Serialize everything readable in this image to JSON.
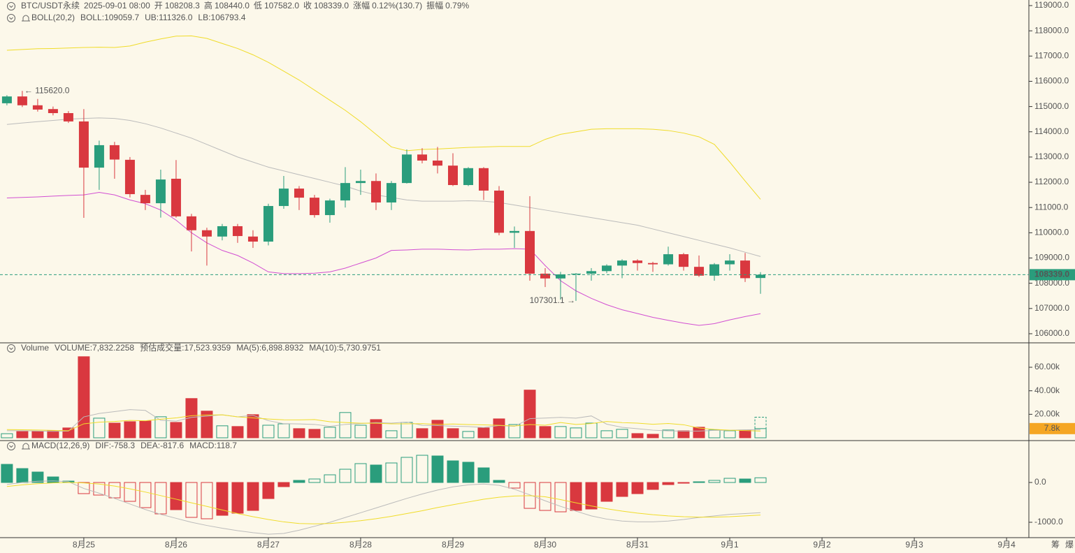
{
  "chart_data": [
    {
      "type": "candlestick",
      "header": {
        "symbol": "BTC/USDT永续",
        "time": "2025-09-01 08:00",
        "open_label": "开",
        "open": "108208.3",
        "high_label": "高",
        "high": "108440.0",
        "low_label": "低",
        "low": "107582.0",
        "close_label": "收",
        "close": "108339.0",
        "change_label": "涨幅",
        "change": "0.12%(130.7)",
        "amplitude_label": "振幅",
        "amplitude": "0.79%"
      },
      "indicator": "BOLL(20,2)",
      "up_color": "#2a9d7c",
      "down_color": "#d9383f",
      "open": [
        115130,
        115400,
        115050,
        114900,
        114740,
        114410,
        112580,
        113470,
        112890,
        111500,
        111170,
        112140,
        110650,
        110100,
        109850,
        110260,
        109850,
        109650,
        111060,
        111750,
        111390,
        110700,
        111280,
        111970,
        112050,
        111200,
        111970,
        113100,
        112860,
        112660,
        111890,
        112560,
        111670,
        110000,
        110070,
        108380,
        108190,
        108350,
        108380,
        108480,
        108700,
        108900,
        108800,
        108750,
        109150,
        108650,
        108300,
        108750,
        108900,
        108208.3
      ],
      "close": [
        115400,
        115050,
        114880,
        114740,
        114410,
        112580,
        113470,
        112900,
        111530,
        111170,
        112110,
        110650,
        110100,
        109850,
        110260,
        109870,
        109650,
        111060,
        111750,
        111390,
        110700,
        111280,
        111970,
        112050,
        111200,
        111970,
        113100,
        112860,
        112660,
        111890,
        112560,
        111670,
        110000,
        110070,
        108380,
        108190,
        108350,
        108380,
        108480,
        108700,
        108900,
        108800,
        108750,
        109150,
        108650,
        108300,
        108750,
        108900,
        108200,
        108339.0
      ],
      "high": [
        115450,
        115620,
        115300,
        115000,
        114820,
        114900,
        113650,
        113600,
        113000,
        111700,
        112500,
        112880,
        110750,
        110200,
        110350,
        110350,
        110100,
        111150,
        112250,
        111850,
        111500,
        111350,
        112600,
        112500,
        112350,
        112050,
        113300,
        113350,
        113400,
        113150,
        112600,
        112600,
        111850,
        110250,
        111450,
        108600,
        108450,
        108400,
        108600,
        108750,
        108950,
        108950,
        108850,
        109450,
        109200,
        109100,
        108800,
        109150,
        109200,
        108440
      ],
      "low": [
        115050,
        114980,
        114800,
        114650,
        114350,
        110591,
        111700,
        112140,
        111400,
        110900,
        110600,
        110600,
        109260,
        108700,
        109700,
        109600,
        109400,
        109500,
        110950,
        110900,
        110600,
        110400,
        111000,
        111500,
        110900,
        110900,
        111950,
        112750,
        112350,
        111850,
        111850,
        111300,
        109900,
        109400,
        108100,
        107850,
        107350,
        107301.1,
        108100,
        108400,
        108200,
        108500,
        108450,
        108700,
        108500,
        108250,
        108100,
        108500,
        108050,
        107582
      ],
      "series": [
        {
          "name": "BOLL:109059.7",
          "color": "#bbbbbb",
          "values": [
            114290,
            114350,
            114400,
            114450,
            114500,
            114530,
            114550,
            114530,
            114450,
            114320,
            114150,
            113950,
            113750,
            113500,
            113250,
            113000,
            112800,
            112600,
            112450,
            112300,
            112150,
            112000,
            111850,
            111650,
            111500,
            111400,
            111300,
            111250,
            111250,
            111250,
            111270,
            111250,
            111200,
            111100,
            111000,
            110900,
            110800,
            110700,
            110600,
            110500,
            110400,
            110300,
            110150,
            110000,
            109850,
            109700,
            109550,
            109400,
            109230,
            109059.7
          ]
        },
        {
          "name": "UB:111326.0",
          "color": "#f0dc2a",
          "values": [
            117230,
            117260,
            117290,
            117300,
            117320,
            117340,
            117350,
            117340,
            117400,
            117550,
            117680,
            117790,
            117800,
            117700,
            117500,
            117300,
            117050,
            116750,
            116400,
            116050,
            115650,
            115250,
            114850,
            114400,
            113900,
            113400,
            113250,
            113300,
            113320,
            113350,
            113380,
            113400,
            113420,
            113420,
            113420,
            113700,
            113900,
            114000,
            114100,
            114120,
            114120,
            114120,
            114100,
            114050,
            113950,
            113800,
            113500,
            112800,
            112050,
            111326.0
          ]
        },
        {
          "name": "LB:106793.4",
          "color": "#d24fd2",
          "values": [
            111380,
            111400,
            111420,
            111450,
            111480,
            111500,
            111600,
            111500,
            111300,
            111150,
            110900,
            110500,
            110000,
            109600,
            109300,
            109100,
            108800,
            108450,
            108380,
            108380,
            108400,
            108450,
            108600,
            108800,
            109000,
            109300,
            109320,
            109350,
            109350,
            109330,
            109320,
            109350,
            109350,
            109370,
            109350,
            108700,
            108100,
            107700,
            107400,
            107150,
            106950,
            106800,
            106650,
            106530,
            106420,
            106330,
            106400,
            106550,
            106680,
            106793.4
          ]
        }
      ],
      "high_annotation": "← 115620.0",
      "low_annotation": "107301.1 →",
      "last_price_label": "108339.0",
      "ylim": [
        105667,
        119221
      ],
      "yticks": [
        {
          "value": 106000,
          "label": "106000.0"
        },
        {
          "value": 107000,
          "label": "107000.0"
        },
        {
          "value": 108000,
          "label": "108000.0"
        },
        {
          "value": 109000,
          "label": "109000.0"
        },
        {
          "value": 110000,
          "label": "110000.0"
        },
        {
          "value": 111000,
          "label": "111000.0"
        },
        {
          "value": 112000,
          "label": "112000.0"
        },
        {
          "value": 113000,
          "label": "113000.0"
        },
        {
          "value": 114000,
          "label": "114000.0"
        },
        {
          "value": 115000,
          "label": "115000.0"
        },
        {
          "value": 116000,
          "label": "116000.0"
        },
        {
          "value": 117000,
          "label": "117000.0"
        },
        {
          "value": 118000,
          "label": "118000.0"
        },
        {
          "value": 119000,
          "label": "119000.0"
        }
      ],
      "xlim": [
        -0.45,
        66.45
      ],
      "xticks": [
        {
          "value": 5,
          "label": "8月25"
        },
        {
          "value": 11,
          "label": "8月26"
        },
        {
          "value": 17,
          "label": "8月27"
        },
        {
          "value": 23,
          "label": "8月28"
        },
        {
          "value": 29,
          "label": "8月29"
        },
        {
          "value": 35,
          "label": "8月30"
        },
        {
          "value": 41,
          "label": "8月31"
        },
        {
          "value": 47,
          "label": "9月1"
        },
        {
          "value": 53,
          "label": "9月2"
        },
        {
          "value": 59,
          "label": "9月3"
        },
        {
          "value": 65,
          "label": "9月4"
        }
      ],
      "corner_labels": [
        "筹",
        "爆"
      ]
    },
    {
      "type": "volume",
      "indicator": "Volume",
      "name": "VOLUME:7,832.2258",
      "estimate_label": "预估成交量:17,523.9359",
      "values": [
        3500,
        5300,
        5300,
        6000,
        8400,
        69000,
        16700,
        12500,
        13700,
        14300,
        17900,
        13100,
        33400,
        22700,
        10200,
        9600,
        19700,
        10700,
        11900,
        7800,
        7200,
        9000,
        21500,
        10700,
        15500,
        6000,
        13100,
        7800,
        14900,
        7800,
        5400,
        8400,
        16100,
        11300,
        40600,
        9600,
        9600,
        8400,
        12500,
        6000,
        7200,
        3600,
        3000,
        6600,
        6000,
        9000,
        6600,
        6000,
        6600,
        7832.2258
      ],
      "estimate": 17523.9359,
      "series": [
        {
          "name": "MA(5):6,898.8932",
          "color": "#bbbbbb",
          "values": [
            6000,
            6000,
            5800,
            5500,
            5700,
            17800,
            20700,
            22300,
            24000,
            23300,
            14900,
            14200,
            17400,
            18400,
            19600,
            17800,
            19100,
            14600,
            12000,
            11800,
            11400,
            9700,
            11400,
            12100,
            12900,
            12500,
            13400,
            10600,
            10400,
            9900,
            9600,
            8800,
            10500,
            9700,
            16300,
            16800,
            17400,
            16700,
            18600,
            11600,
            8900,
            7700,
            6500,
            5900,
            5700,
            5700,
            6300,
            6400,
            6800,
            6898.8932
          ]
        },
        {
          "name": "MA(10):5,730.9751",
          "color": "#f0dc2a",
          "values": [
            7000,
            6800,
            6600,
            6300,
            6000,
            11900,
            13300,
            13900,
            14800,
            14500,
            15800,
            16900,
            18800,
            19400,
            19500,
            17800,
            16900,
            16000,
            15300,
            15200,
            15500,
            13700,
            13000,
            12400,
            12400,
            11900,
            11900,
            12000,
            11400,
            11700,
            11300,
            11000,
            10600,
            10000,
            11300,
            10700,
            13000,
            11400,
            12100,
            13900,
            12900,
            12500,
            11500,
            12200,
            11100,
            8300,
            7100,
            6500,
            6200,
            5730.9751
          ]
        }
      ],
      "last_label": "7.8k",
      "ylim": [
        -1780,
        80800
      ],
      "yticks": [
        {
          "value": 20000,
          "label": "20.00k"
        },
        {
          "value": 40000,
          "label": "40.00k"
        },
        {
          "value": 60000,
          "label": "60.00k"
        }
      ]
    },
    {
      "type": "macd",
      "indicator": "MACD(12,26,9)",
      "name": "MACD:118.7",
      "values": [
        456,
        350,
        263,
        140,
        35,
        -280,
        -316,
        -386,
        -474,
        -632,
        -789,
        -684,
        -877,
        -912,
        -825,
        -772,
        -702,
        -404,
        -105,
        53,
        88,
        193,
        333,
        474,
        439,
        491,
        632,
        684,
        667,
        544,
        509,
        368,
        53,
        -140,
        -650,
        -702,
        -737,
        -702,
        -667,
        -474,
        -351,
        -281,
        -175,
        -53,
        -18,
        18,
        53,
        105,
        88,
        118.7
      ],
      "series": [
        {
          "name": "DIF:-758.3",
          "color": "#bbbbbb",
          "values": [
            -50,
            0,
            30,
            40,
            20,
            -150,
            -270,
            -400,
            -540,
            -680,
            -800,
            -900,
            -1000,
            -1080,
            -1150,
            -1210,
            -1260,
            -1300,
            -1280,
            -1200,
            -1100,
            -1000,
            -880,
            -760,
            -640,
            -520,
            -400,
            -290,
            -190,
            -110,
            -60,
            -40,
            -70,
            -170,
            -310,
            -460,
            -600,
            -720,
            -840,
            -920,
            -970,
            -990,
            -990,
            -970,
            -930,
            -880,
            -840,
            -800,
            -780,
            -758.3
          ]
        },
        {
          "name": "DEA:-817.6",
          "color": "#f0dc2a",
          "values": [
            -100,
            -60,
            -30,
            -10,
            0,
            -10,
            -40,
            -90,
            -160,
            -240,
            -330,
            -420,
            -510,
            -600,
            -690,
            -780,
            -860,
            -930,
            -990,
            -1030,
            -1040,
            -1030,
            -1000,
            -960,
            -910,
            -850,
            -780,
            -710,
            -630,
            -560,
            -490,
            -420,
            -370,
            -340,
            -330,
            -360,
            -430,
            -510,
            -590,
            -660,
            -720,
            -770,
            -810,
            -840,
            -860,
            -870,
            -870,
            -860,
            -840,
            -817.6
          ]
        }
      ],
      "ylim": [
        -1386,
        1053
      ],
      "yticks": [
        {
          "value": -1000,
          "label": "-1000.0"
        },
        {
          "value": 0,
          "label": "0.0"
        }
      ]
    }
  ]
}
